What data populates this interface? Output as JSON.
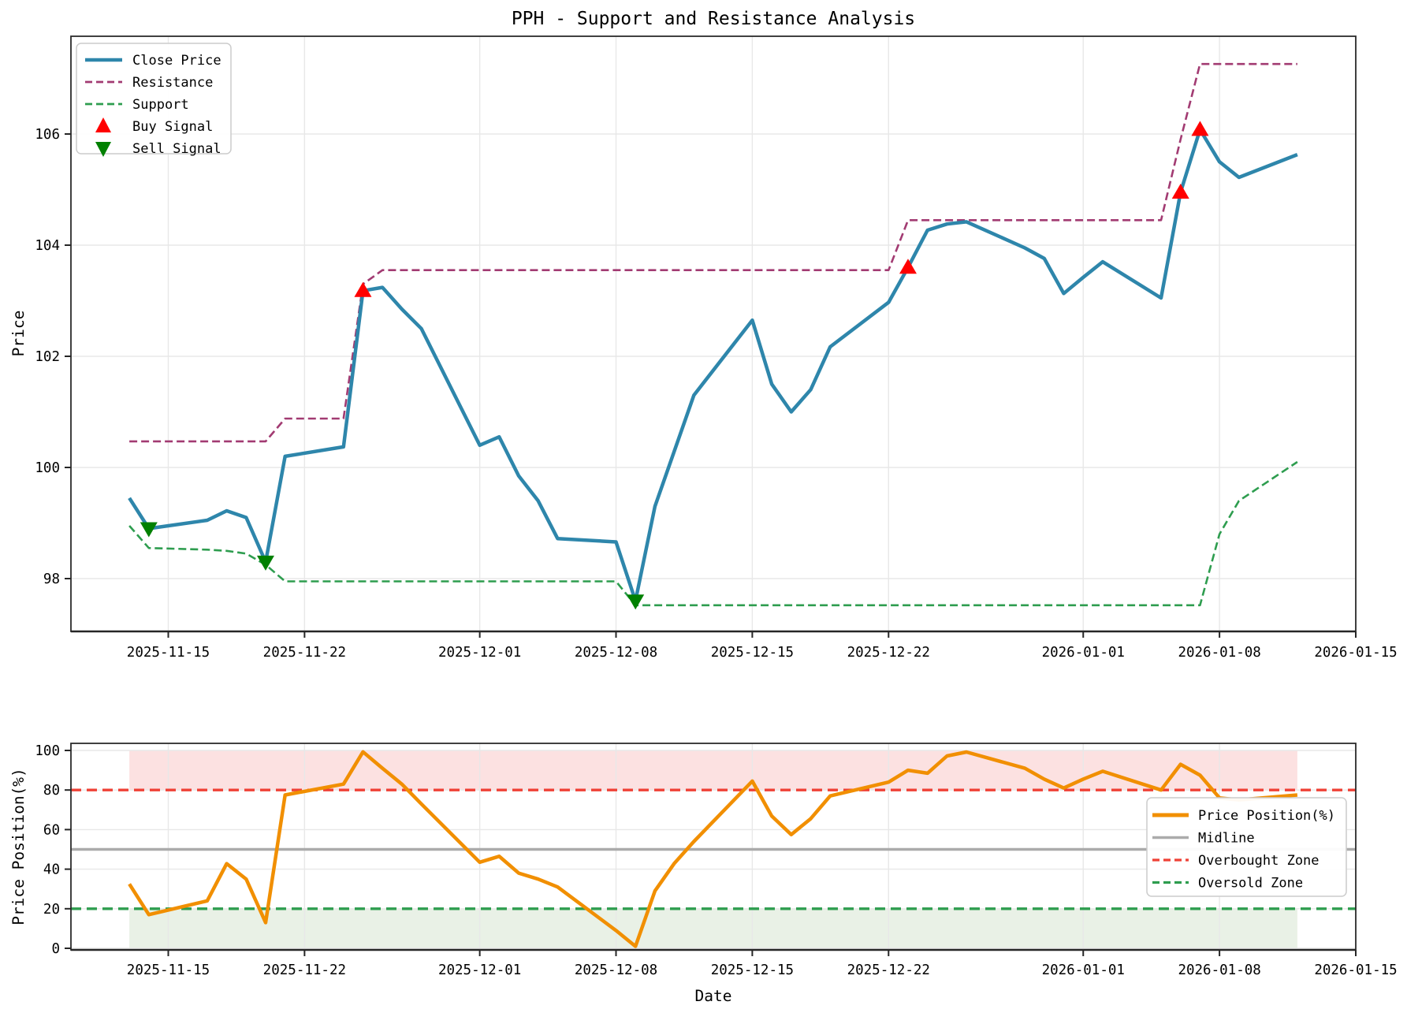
{
  "title": "PPH - Support and Resistance Analysis",
  "dates": [
    "2025-11-13",
    "2025-11-14",
    "2025-11-17",
    "2025-11-18",
    "2025-11-19",
    "2025-11-20",
    "2025-11-21",
    "2025-11-24",
    "2025-11-25",
    "2025-11-26",
    "2025-11-27",
    "2025-11-28",
    "2025-12-01",
    "2025-12-02",
    "2025-12-03",
    "2025-12-04",
    "2025-12-05",
    "2025-12-08",
    "2025-12-09",
    "2025-12-10",
    "2025-12-11",
    "2025-12-12",
    "2025-12-15",
    "2025-12-16",
    "2025-12-17",
    "2025-12-18",
    "2025-12-19",
    "2025-12-22",
    "2025-12-23",
    "2025-12-24",
    "2025-12-25",
    "2025-12-26",
    "2025-12-29",
    "2025-12-30",
    "2025-12-31",
    "2026-01-01",
    "2026-01-02",
    "2026-01-05",
    "2026-01-06",
    "2026-01-07",
    "2026-01-08",
    "2026-01-09",
    "2026-01-12"
  ],
  "chart_data": [
    {
      "type": "line",
      "title": "PPH - Support and Resistance Analysis",
      "xlabel": "",
      "ylabel": "Price",
      "ylim": [
        97.0,
        107.8
      ],
      "yticks": [
        98,
        100,
        102,
        104,
        106
      ],
      "xtick_labels": [
        "2025-11-15",
        "2025-11-22",
        "2025-12-01",
        "2025-12-08",
        "2025-12-15",
        "2025-12-22",
        "2026-01-01",
        "2026-01-08",
        "2026-01-15"
      ],
      "grid": true,
      "grid_color": "#e8e8e8",
      "legend_position": "upper left",
      "series": [
        {
          "name": "Close Price",
          "style": "solid",
          "color": "#2E86AB",
          "width": 4.5,
          "values": [
            99.45,
            98.9,
            99.05,
            99.22,
            99.1,
            98.3,
            100.2,
            100.37,
            103.18,
            103.24,
            102.85,
            102.5,
            100.4,
            100.55,
            99.85,
            99.4,
            98.72,
            98.66,
            97.6,
            99.3,
            100.3,
            101.3,
            102.65,
            101.5,
            101.0,
            101.4,
            102.17,
            102.97,
            103.6,
            104.27,
            104.38,
            104.42,
            103.95,
            103.76,
            103.13,
            103.42,
            103.7,
            103.05,
            104.95,
            106.08,
            105.5,
            105.22,
            105.63
          ]
        },
        {
          "name": "Resistance",
          "style": "dashed",
          "color": "#A23B72",
          "width": 2.6,
          "values": [
            100.47,
            100.47,
            100.47,
            100.47,
            100.47,
            100.47,
            100.88,
            100.88,
            103.3,
            103.55,
            103.55,
            103.55,
            103.55,
            103.55,
            103.55,
            103.55,
            103.55,
            103.55,
            103.55,
            103.55,
            103.55,
            103.55,
            103.55,
            103.55,
            103.55,
            103.55,
            103.55,
            103.55,
            104.45,
            104.45,
            104.45,
            104.45,
            104.45,
            104.45,
            104.45,
            104.45,
            104.45,
            104.45,
            105.9,
            107.26,
            107.26,
            107.26,
            107.26
          ]
        },
        {
          "name": "Support",
          "style": "dashed",
          "color": "#2E9D4F",
          "width": 2.6,
          "values": [
            98.95,
            98.55,
            98.52,
            98.5,
            98.45,
            98.25,
            97.95,
            97.95,
            97.95,
            97.95,
            97.95,
            97.95,
            97.95,
            97.95,
            97.95,
            97.95,
            97.95,
            97.95,
            97.52,
            97.52,
            97.52,
            97.52,
            97.52,
            97.52,
            97.52,
            97.52,
            97.52,
            97.52,
            97.52,
            97.52,
            97.52,
            97.52,
            97.52,
            97.52,
            97.52,
            97.52,
            97.52,
            97.52,
            97.52,
            97.52,
            98.8,
            99.4,
            100.1
          ]
        }
      ],
      "signals": {
        "buy": {
          "label": "Buy Signal",
          "color": "#FF0000",
          "marker": "triangle-up",
          "points": [
            {
              "date": "2025-11-25",
              "price": 103.18
            },
            {
              "date": "2025-12-23",
              "price": 103.6
            },
            {
              "date": "2026-01-06",
              "price": 104.95
            },
            {
              "date": "2026-01-07",
              "price": 106.08
            }
          ]
        },
        "sell": {
          "label": "Sell Signal",
          "color": "#008000",
          "marker": "triangle-down",
          "points": [
            {
              "date": "2025-11-14",
              "price": 98.9
            },
            {
              "date": "2025-11-20",
              "price": 98.3
            },
            {
              "date": "2025-12-09",
              "price": 97.6
            }
          ]
        }
      }
    },
    {
      "type": "line",
      "title": "",
      "xlabel": "Date",
      "ylabel": "Price Position(%)",
      "ylim": [
        0,
        104
      ],
      "yticks": [
        0,
        20,
        40,
        60,
        80,
        100
      ],
      "xtick_labels": [
        "2025-11-15",
        "2025-11-22",
        "2025-12-01",
        "2025-12-08",
        "2025-12-15",
        "2025-12-22",
        "2026-01-01",
        "2026-01-08",
        "2026-01-15"
      ],
      "grid": true,
      "grid_color": "#e8e8e8",
      "legend_position": "lower right",
      "series": [
        {
          "name": "Price Position(%)",
          "style": "solid",
          "color": "#F18F01",
          "width": 4.5,
          "values": [
            32.5,
            17,
            24,
            42.8,
            35,
            13,
            77.5,
            83,
            99.3,
            91,
            83,
            73,
            43.5,
            46.5,
            38,
            35,
            31,
            9,
            1,
            29,
            43,
            54,
            84.5,
            66.8,
            57.5,
            65.5,
            77,
            84,
            90,
            88.5,
            97.2,
            99.2,
            91,
            85.5,
            81,
            85.5,
            89.5,
            80,
            93,
            87.5,
            76,
            75,
            77.5
          ]
        }
      ],
      "reference_lines": [
        {
          "name": "Midline",
          "value": 50,
          "color": "#ABABAB",
          "style": "solid",
          "width": 3.5
        },
        {
          "name": "Overbought Zone",
          "value": 80,
          "color": "#EF4136",
          "style": "dashed",
          "width": 3.3
        },
        {
          "name": "Oversold Zone",
          "value": 20,
          "color": "#2E9D4F",
          "style": "dashed",
          "width": 3.3
        }
      ],
      "bands": [
        {
          "from": 80,
          "to": 100,
          "color": "#FCE1E1"
        },
        {
          "from": 0,
          "to": 20,
          "color": "#E9F1E6"
        }
      ]
    }
  ]
}
